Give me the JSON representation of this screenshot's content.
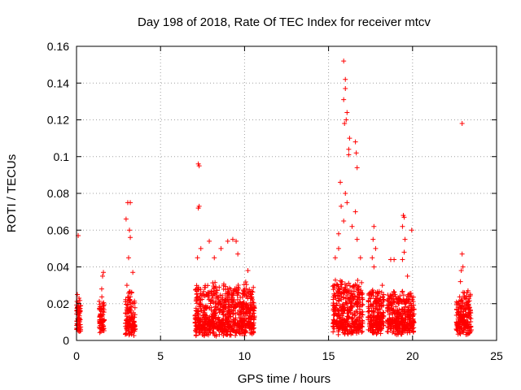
{
  "chart_data": {
    "type": "scatter",
    "title": "Day 198 of 2018, Rate Of TEC Index for receiver mtcv",
    "xlabel": "GPS time / hours",
    "ylabel": "ROTI / TECUs",
    "xlim": [
      0,
      25
    ],
    "ylim": [
      0,
      0.16
    ],
    "grid": true,
    "marker": "+",
    "marker_color": "#ff0000",
    "x_ticks": [
      0,
      5,
      10,
      15,
      20,
      25
    ],
    "x_tick_labels": [
      "0",
      "5",
      "10",
      "15",
      "20",
      "25"
    ],
    "y_ticks": [
      0,
      0.02,
      0.04,
      0.06,
      0.08,
      0.1,
      0.12,
      0.14,
      0.16
    ],
    "y_tick_labels": [
      "0",
      "0.02",
      "0.04",
      "0.06",
      "0.08",
      "0.1",
      "0.12",
      "0.14",
      "0.16"
    ],
    "clusters": [
      {
        "x_range": [
          0.0,
          0.25
        ],
        "typical": [
          0.004,
          0.018
        ],
        "peaks": [
          [
            0.1,
            0.057
          ],
          [
            0.05,
            0.025
          ],
          [
            0.15,
            0.023
          ]
        ]
      },
      {
        "x_range": [
          1.35,
          1.65
        ],
        "typical": [
          0.004,
          0.02
        ],
        "peaks": [
          [
            1.6,
            0.037
          ],
          [
            1.55,
            0.035
          ],
          [
            1.5,
            0.028
          ]
        ]
      },
      {
        "x_range": [
          2.9,
          3.5
        ],
        "typical": [
          0.002,
          0.022
        ],
        "peaks": [
          [
            3.05,
            0.075
          ],
          [
            3.2,
            0.075
          ],
          [
            3.15,
            0.06
          ],
          [
            3.2,
            0.056
          ],
          [
            3.1,
            0.045
          ],
          [
            3.35,
            0.037
          ],
          [
            2.95,
            0.066
          ],
          [
            3.0,
            0.03
          ]
        ]
      },
      {
        "x_range": [
          7.05,
          10.6
        ],
        "typical": [
          0.002,
          0.026
        ],
        "peaks": [
          [
            7.25,
            0.096
          ],
          [
            7.3,
            0.095
          ],
          [
            7.3,
            0.073
          ],
          [
            7.25,
            0.072
          ],
          [
            7.4,
            0.05
          ],
          [
            7.9,
            0.054
          ],
          [
            8.2,
            0.045
          ],
          [
            8.6,
            0.05
          ],
          [
            9.0,
            0.054
          ],
          [
            9.3,
            0.055
          ],
          [
            9.5,
            0.054
          ],
          [
            9.6,
            0.047
          ],
          [
            10.2,
            0.038
          ],
          [
            7.2,
            0.045
          ]
        ]
      },
      {
        "x_range": [
          15.25,
          17.05
        ],
        "typical": [
          0.003,
          0.028
        ],
        "peaks": [
          [
            15.9,
            0.152
          ],
          [
            16.0,
            0.142
          ],
          [
            16.0,
            0.137
          ],
          [
            15.9,
            0.131
          ],
          [
            16.1,
            0.124
          ],
          [
            16.05,
            0.12
          ],
          [
            15.95,
            0.118
          ],
          [
            16.25,
            0.11
          ],
          [
            16.2,
            0.104
          ],
          [
            16.6,
            0.108
          ],
          [
            16.65,
            0.102
          ],
          [
            16.7,
            0.094
          ],
          [
            16.2,
            0.101
          ],
          [
            15.7,
            0.086
          ],
          [
            16.0,
            0.08
          ],
          [
            16.1,
            0.075
          ],
          [
            15.75,
            0.073
          ],
          [
            16.6,
            0.07
          ],
          [
            15.9,
            0.065
          ],
          [
            16.4,
            0.062
          ],
          [
            15.6,
            0.058
          ],
          [
            16.7,
            0.055
          ],
          [
            15.4,
            0.045
          ],
          [
            15.6,
            0.05
          ],
          [
            16.9,
            0.045
          ]
        ]
      },
      {
        "x_range": [
          17.35,
          18.3
        ],
        "typical": [
          0.003,
          0.025
        ],
        "peaks": [
          [
            17.7,
            0.062
          ],
          [
            17.65,
            0.055
          ],
          [
            17.8,
            0.05
          ],
          [
            17.6,
            0.045
          ],
          [
            17.7,
            0.04
          ],
          [
            18.2,
            0.03
          ]
        ]
      },
      {
        "x_range": [
          18.5,
          20.1
        ],
        "typical": [
          0.003,
          0.022
        ],
        "peaks": [
          [
            19.45,
            0.068
          ],
          [
            19.5,
            0.067
          ],
          [
            19.4,
            0.062
          ],
          [
            19.55,
            0.055
          ],
          [
            19.5,
            0.048
          ],
          [
            19.95,
            0.06
          ],
          [
            19.4,
            0.044
          ],
          [
            18.7,
            0.044
          ],
          [
            18.9,
            0.044
          ],
          [
            19.7,
            0.035
          ]
        ]
      },
      {
        "x_range": [
          22.6,
          23.5
        ],
        "typical": [
          0.003,
          0.022
        ],
        "peaks": [
          [
            22.95,
            0.118
          ],
          [
            22.95,
            0.047
          ],
          [
            23.0,
            0.04
          ],
          [
            22.9,
            0.038
          ],
          [
            22.85,
            0.032
          ],
          [
            23.3,
            0.027
          ]
        ]
      }
    ]
  }
}
